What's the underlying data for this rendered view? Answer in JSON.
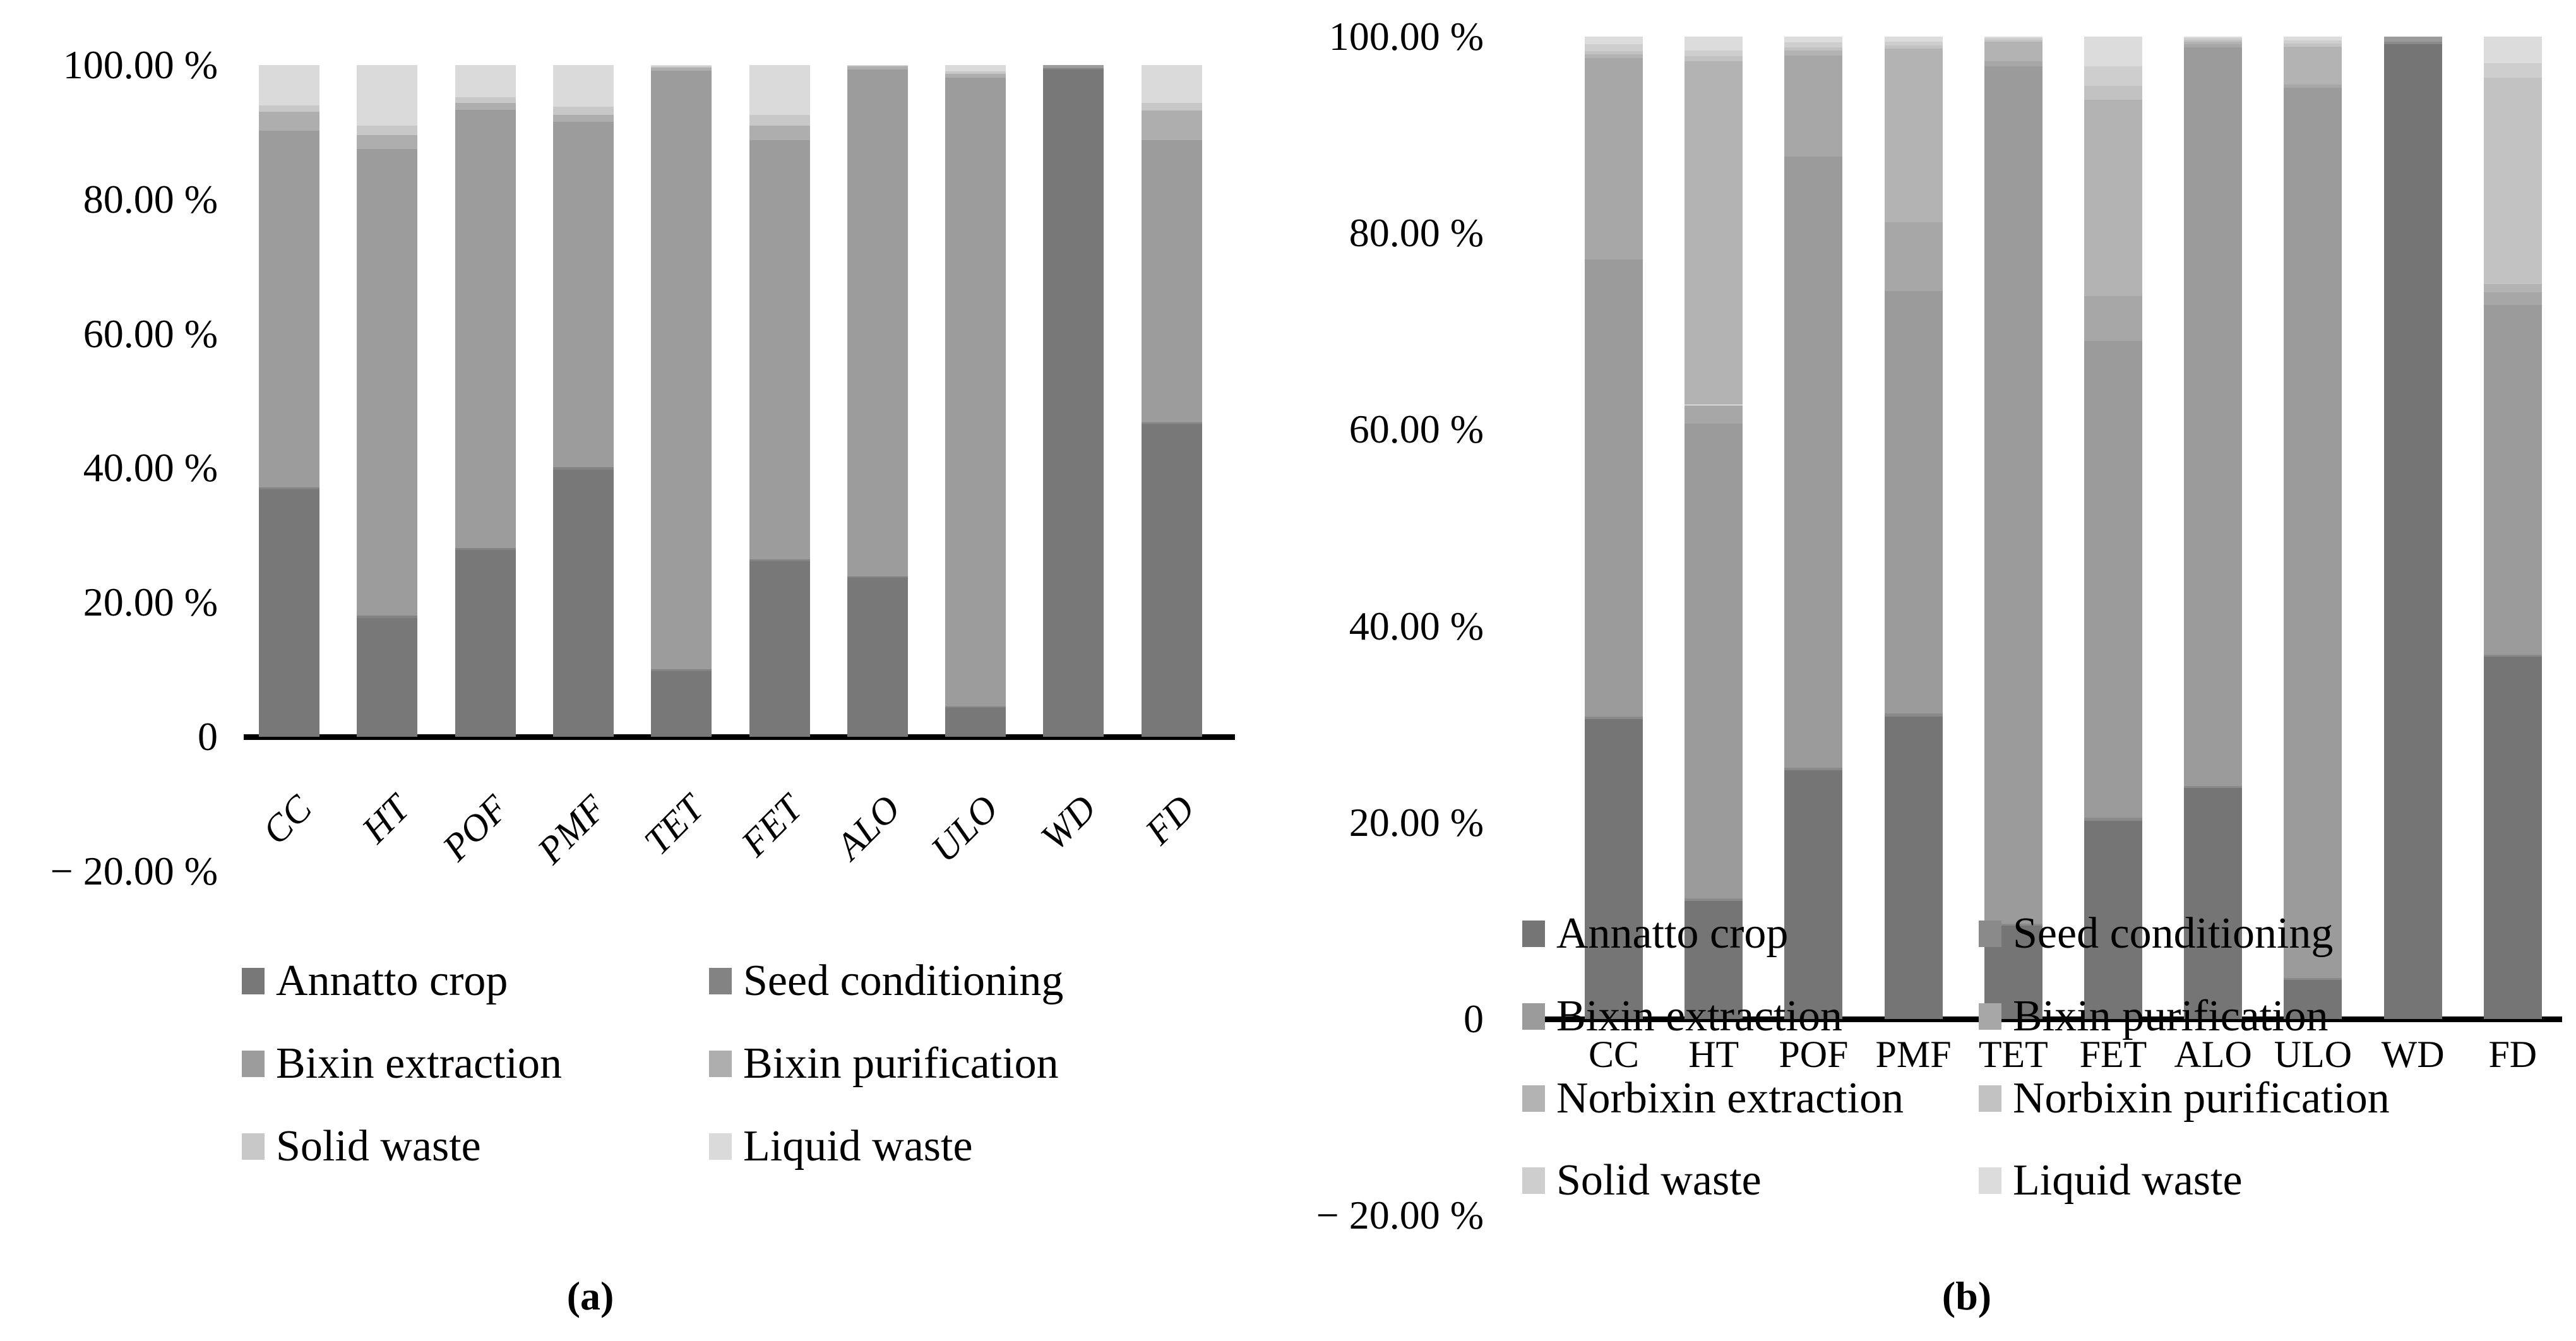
{
  "chart_data": [
    {
      "id": "a",
      "caption": "(a)",
      "type": "bar",
      "stacked": true,
      "unit": "%",
      "ylim": [
        -20,
        100
      ],
      "grid": false,
      "legend_position": "below",
      "y_ticks": [
        {
          "value": 100,
          "label": "100.00 %"
        },
        {
          "value": 80,
          "label": "80.00 %"
        },
        {
          "value": 60,
          "label": "60.00 %"
        },
        {
          "value": 40,
          "label": "40.00 %"
        },
        {
          "value": 20,
          "label": "20.00 %"
        },
        {
          "value": 0,
          "label": "0"
        },
        {
          "value": -20,
          "label": "− 20.00 %"
        }
      ],
      "categories": [
        "CC",
        "HT",
        "POF",
        "PMF",
        "TET",
        "FET",
        "ALO",
        "ULO",
        "WD",
        "FD"
      ],
      "series": [
        {
          "name": "Annatto crop",
          "color": "#787878",
          "values": [
            36.8,
            17.7,
            27.8,
            39.8,
            9.8,
            26.1,
            23.7,
            4.3,
            99.3,
            46.5
          ]
        },
        {
          "name": "Seed conditioning",
          "color": "#838383",
          "values": [
            0.3,
            0.3,
            0.3,
            0.3,
            0.3,
            0.3,
            0.2,
            0.2,
            0.2,
            0.3
          ]
        },
        {
          "name": "Bixin extraction",
          "color": "#9c9c9c",
          "values": [
            53.1,
            69.5,
            65.2,
            51.4,
            89.1,
            62.4,
            75.4,
            93.6,
            0.5,
            42.0
          ]
        },
        {
          "name": "Bixin purification",
          "color": "#aeaeae",
          "values": [
            2.8,
            2.1,
            1.1,
            1.1,
            0.4,
            2.2,
            0.5,
            0.6,
            0.0,
            4.4
          ]
        },
        {
          "name": "Solid waste",
          "color": "#c8c8c8",
          "values": [
            1.0,
            1.4,
            0.8,
            1.2,
            0.2,
            1.6,
            0.1,
            0.4,
            0.0,
            1.2
          ]
        },
        {
          "name": "Liquid waste",
          "color": "#dadada",
          "values": [
            6.0,
            9.0,
            4.8,
            6.2,
            0.2,
            7.4,
            0.1,
            0.9,
            0.0,
            5.6
          ]
        }
      ]
    },
    {
      "id": "b",
      "caption": "(b)",
      "type": "bar",
      "stacked": true,
      "unit": "%",
      "ylim": [
        -20,
        100
      ],
      "grid": false,
      "legend_position": "below",
      "y_ticks": [
        {
          "value": 100,
          "label": "100.00 %"
        },
        {
          "value": 80,
          "label": "80.00 %"
        },
        {
          "value": 60,
          "label": "60.00 %"
        },
        {
          "value": 40,
          "label": "40.00 %"
        },
        {
          "value": 20,
          "label": "20.00 %"
        },
        {
          "value": 0,
          "label": "0"
        },
        {
          "value": -20,
          "label": "− 20.00 %"
        }
      ],
      "categories": [
        "CC",
        "HT",
        "POF",
        "PMF",
        "TET",
        "FET",
        "ALO",
        "ULO",
        "WD",
        "FD"
      ],
      "series": [
        {
          "name": "Annatto crop",
          "color": "#757575",
          "values": [
            30.5,
            12.0,
            25.3,
            30.8,
            9.5,
            20.2,
            23.5,
            4.0,
            99.2,
            36.9
          ]
        },
        {
          "name": "Seed conditioning",
          "color": "#8a8a8a",
          "values": [
            0.3,
            0.3,
            0.3,
            0.3,
            0.2,
            0.3,
            0.2,
            0.2,
            0.3,
            0.2
          ]
        },
        {
          "name": "Bixin extraction",
          "color": "#9b9b9b",
          "values": [
            46.5,
            48.3,
            62.2,
            43.0,
            87.3,
            48.5,
            75.2,
            90.6,
            0.5,
            35.6
          ]
        },
        {
          "name": "Bixin purification",
          "color": "#a7a7a7",
          "values": [
            20.5,
            1.9,
            10.3,
            7.0,
            0.5,
            4.6,
            0.3,
            0.3,
            0.0,
            1.3
          ]
        },
        {
          "name": "Norbixin extraction",
          "color": "#b3b3b3",
          "values": [
            0.4,
            35.0,
            0.5,
            17.7,
            2.0,
            20.0,
            0.3,
            3.9,
            0.0,
            0.8
          ]
        },
        {
          "name": "Norbixin purification",
          "color": "#c2c2c2",
          "values": [
            0.3,
            0.5,
            0.3,
            0.3,
            0.2,
            1.4,
            0.2,
            0.3,
            0.0,
            21.0
          ]
        },
        {
          "name": "Solid waste",
          "color": "#cecece",
          "values": [
            0.7,
            0.6,
            0.5,
            0.4,
            0.2,
            2.0,
            0.2,
            0.3,
            0.0,
            1.5
          ]
        },
        {
          "name": "Liquid waste",
          "color": "#dcdcdc",
          "values": [
            0.8,
            1.4,
            0.6,
            0.5,
            0.1,
            3.0,
            0.1,
            0.4,
            0.0,
            2.7
          ]
        }
      ]
    }
  ]
}
